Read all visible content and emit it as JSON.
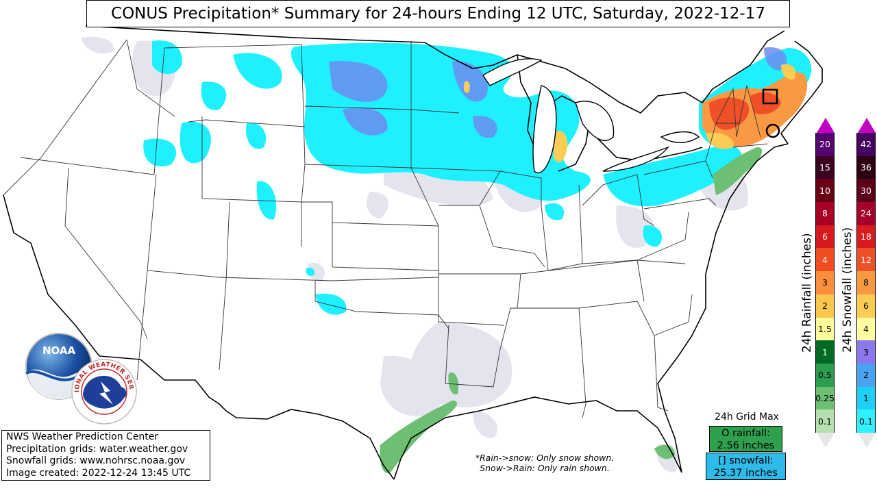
{
  "title": "CONUS Precipitation* Summary for 24-hours Ending 12 UTC, Saturday, 2022-12-17",
  "credits": [
    "NWS Weather Prediction Center",
    "Precipitation grids: water.weather.gov",
    "Snowfall grids: www.nohrsc.noaa.gov",
    "Image created: 2022-12-24 13:45 UTC"
  ],
  "note": [
    "*Rain->snow: Only snow shown.",
    "Snow->Rain: Only rain shown."
  ],
  "grid_max": {
    "title": "24h Grid Max",
    "rain_label": "O rainfall:",
    "rain_value": "2.56 inches",
    "snow_label": "[] snowfall:",
    "snow_value": "25.37 inches"
  },
  "rain_scale": {
    "label": "24h Rainfall (inches)",
    "levels": [
      {
        "v": "20",
        "c": "#54006e"
      },
      {
        "v": "15",
        "c": "#3a0022"
      },
      {
        "v": "10",
        "c": "#6b0014"
      },
      {
        "v": "8",
        "c": "#a80024"
      },
      {
        "v": "6",
        "c": "#d6181f"
      },
      {
        "v": "4",
        "c": "#f04d22"
      },
      {
        "v": "3",
        "c": "#fb8f3e"
      },
      {
        "v": "2",
        "c": "#fbc64d"
      },
      {
        "v": "1.5",
        "c": "#fefb9c"
      },
      {
        "v": "1",
        "c": "#006b24"
      },
      {
        "v": "0.5",
        "c": "#2a9d4f"
      },
      {
        "v": "0.25",
        "c": "#6cbf73"
      },
      {
        "v": "0.1",
        "c": "#b6dfb0"
      }
    ]
  },
  "snow_scale": {
    "label": "24h Snowfall (inches)",
    "levels": [
      {
        "v": "42",
        "c": "#460060"
      },
      {
        "v": "36",
        "c": "#2b0011"
      },
      {
        "v": "30",
        "c": "#5a0018"
      },
      {
        "v": "24",
        "c": "#a6002a"
      },
      {
        "v": "18",
        "c": "#d91a1f"
      },
      {
        "v": "12",
        "c": "#f05027"
      },
      {
        "v": "8",
        "c": "#fb9942"
      },
      {
        "v": "6",
        "c": "#fbcd54"
      },
      {
        "v": "4",
        "c": "#fefc9f"
      },
      {
        "v": "3",
        "c": "#8b78ef"
      },
      {
        "v": "2",
        "c": "#4aa2f2"
      },
      {
        "v": "1",
        "c": "#1ed0f6"
      },
      {
        "v": "0.1",
        "c": "#2ef0ff"
      }
    ]
  },
  "logos": {
    "noaa": "NOAA",
    "nws": "NATIONAL WEATHER SERVICE"
  },
  "colors": {
    "snow_light": "#1ef0ff",
    "snow_mid": "#4aa2f2",
    "snow_heavy": "#8b78ef",
    "rain_light": "#6cbf73",
    "trace": "#e6e6ee",
    "state_line": "#333333"
  }
}
